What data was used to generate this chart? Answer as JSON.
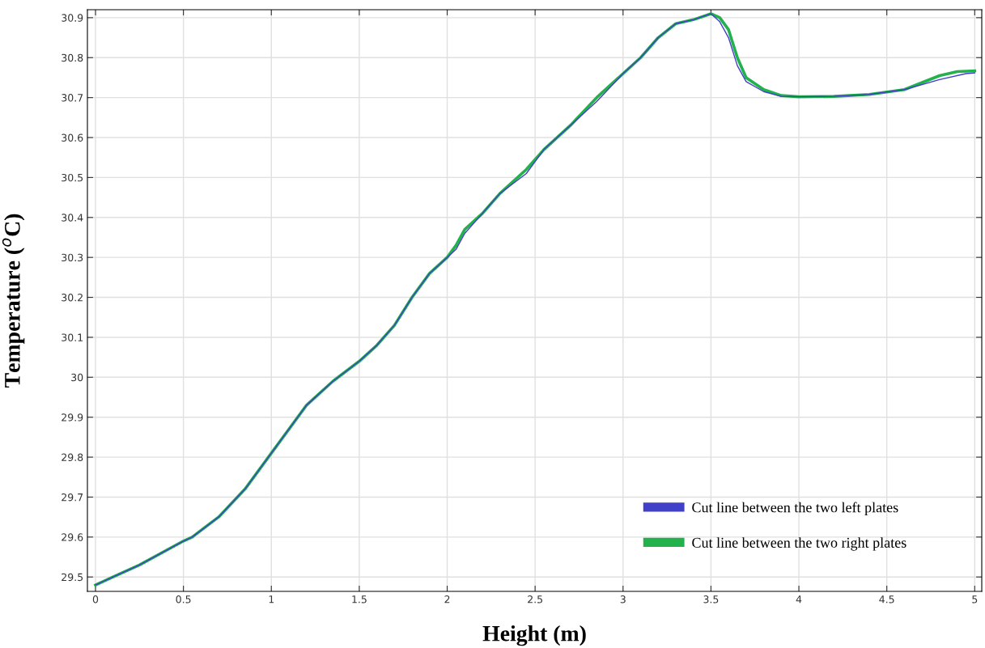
{
  "chart_data": {
    "type": "line",
    "xlabel": "Height (m)",
    "ylabel": "Temperature ($^{o}$C)",
    "xlim": [
      -0.046,
      5.04
    ],
    "ylim": [
      29.464,
      30.92
    ],
    "xticks": [
      0,
      0.5,
      1,
      1.5,
      2,
      2.5,
      3,
      3.5,
      4,
      4.5,
      5
    ],
    "yticks": [
      29.5,
      29.6,
      29.7,
      29.8,
      29.9,
      30,
      30.1,
      30.2,
      30.3,
      30.4,
      30.5,
      30.6,
      30.7,
      30.8,
      30.9
    ],
    "grid": true,
    "legend": "bottom right",
    "line_style": "solid",
    "marker": "none",
    "series": [
      {
        "name": "Cut line between the two left plates",
        "color": "#4040c8",
        "x": [
          0,
          0.1,
          0.25,
          0.5,
          0.55,
          0.7,
          0.85,
          1.0,
          1.2,
          1.35,
          1.5,
          1.6,
          1.7,
          1.8,
          1.9,
          2.0,
          2.05,
          2.1,
          2.2,
          2.3,
          2.45,
          2.55,
          2.7,
          2.85,
          3.0,
          3.1,
          3.2,
          3.3,
          3.4,
          3.5,
          3.55,
          3.6,
          3.65,
          3.7,
          3.8,
          3.9,
          4.0,
          4.2,
          4.4,
          4.6,
          4.8,
          4.95,
          5.0
        ],
        "values": [
          29.48,
          29.5,
          29.53,
          29.59,
          29.6,
          29.65,
          29.72,
          29.81,
          29.93,
          29.99,
          30.04,
          30.08,
          30.13,
          30.2,
          30.26,
          30.3,
          30.32,
          30.36,
          30.41,
          30.46,
          30.51,
          30.57,
          30.63,
          30.69,
          30.76,
          30.8,
          30.85,
          30.885,
          30.895,
          30.91,
          30.89,
          30.85,
          30.78,
          30.74,
          30.715,
          30.703,
          30.702,
          30.703,
          30.708,
          30.72,
          30.745,
          30.76,
          30.762
        ]
      },
      {
        "name": "Cut line between the two right plates",
        "color": "#22b14c",
        "x": [
          0,
          0.1,
          0.25,
          0.5,
          0.55,
          0.7,
          0.85,
          1.0,
          1.2,
          1.35,
          1.5,
          1.6,
          1.7,
          1.8,
          1.9,
          2.0,
          2.05,
          2.1,
          2.2,
          2.3,
          2.45,
          2.55,
          2.7,
          2.85,
          3.0,
          3.1,
          3.2,
          3.3,
          3.4,
          3.5,
          3.55,
          3.6,
          3.65,
          3.7,
          3.8,
          3.9,
          4.0,
          4.2,
          4.4,
          4.6,
          4.8,
          4.9,
          5.0
        ],
        "values": [
          29.48,
          29.5,
          29.53,
          29.59,
          29.6,
          29.65,
          29.72,
          29.81,
          29.93,
          29.99,
          30.04,
          30.08,
          30.13,
          30.2,
          30.26,
          30.3,
          30.33,
          30.37,
          30.41,
          30.46,
          30.52,
          30.57,
          30.63,
          30.7,
          30.76,
          30.8,
          30.85,
          30.885,
          30.895,
          30.91,
          30.9,
          30.87,
          30.8,
          30.75,
          30.72,
          30.705,
          30.702,
          30.703,
          30.708,
          30.72,
          30.755,
          30.765,
          30.767
        ]
      }
    ]
  }
}
